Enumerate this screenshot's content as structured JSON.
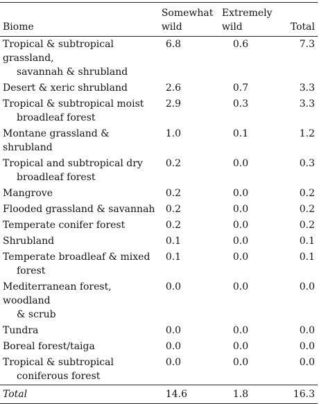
{
  "header": {
    "biome": "Biome",
    "somewhat_wild": "Somewhat wild",
    "somewhat_wild_l1": "Somewhat",
    "somewhat_wild_l2": "wild",
    "extremely_wild": "Extremely wild",
    "extremely_wild_l1": "Extremely",
    "extremely_wild_l2": "wild",
    "total": "Total"
  },
  "rows": [
    {
      "biome_l1": "Tropical & subtropical grassland,",
      "biome_l2": "savannah & shrubland",
      "somewhat": "6.8",
      "extremely": "0.6",
      "total": "7.3"
    },
    {
      "biome_l1": "Desert & xeric shrubland",
      "biome_l2": "",
      "somewhat": "2.6",
      "extremely": "0.7",
      "total": "3.3"
    },
    {
      "biome_l1": "Tropical & subtropical moist",
      "biome_l2": "broadleaf forest",
      "somewhat": "2.9",
      "extremely": "0.3",
      "total": "3.3"
    },
    {
      "biome_l1": "Montane grassland & shrubland",
      "biome_l2": "",
      "somewhat": "1.0",
      "extremely": "0.1",
      "total": "1.2"
    },
    {
      "biome_l1": "Tropical and subtropical dry",
      "biome_l2": "broadleaf forest",
      "somewhat": "0.2",
      "extremely": "0.0",
      "total": "0.3"
    },
    {
      "biome_l1": "Mangrove",
      "biome_l2": "",
      "somewhat": "0.2",
      "extremely": "0.0",
      "total": "0.2"
    },
    {
      "biome_l1": "Flooded grassland & savannah",
      "biome_l2": "",
      "somewhat": "0.2",
      "extremely": "0.0",
      "total": "0.2"
    },
    {
      "biome_l1": "Temperate conifer forest",
      "biome_l2": "",
      "somewhat": "0.2",
      "extremely": "0.0",
      "total": "0.2"
    },
    {
      "biome_l1": "Shrubland",
      "biome_l2": "",
      "somewhat": "0.1",
      "extremely": "0.0",
      "total": "0.1"
    },
    {
      "biome_l1": "Temperate broadleaf & mixed",
      "biome_l2": "forest",
      "somewhat": "0.1",
      "extremely": "0.0",
      "total": "0.1"
    },
    {
      "biome_l1": "Mediterranean forest, woodland",
      "biome_l2": "& scrub",
      "somewhat": "0.0",
      "extremely": "0.0",
      "total": "0.0"
    },
    {
      "biome_l1": "Tundra",
      "biome_l2": "",
      "somewhat": "0.0",
      "extremely": "0.0",
      "total": "0.0"
    },
    {
      "biome_l1": "Boreal forest/taiga",
      "biome_l2": "",
      "somewhat": "0.0",
      "extremely": "0.0",
      "total": "0.0"
    },
    {
      "biome_l1": "Tropical & subtropical",
      "biome_l2": "coniferous forest",
      "somewhat": "0.0",
      "extremely": "0.0",
      "total": "0.0"
    }
  ],
  "total_row": {
    "label": "Total",
    "somewhat": "14.6",
    "extremely": "1.8",
    "total": "16.3"
  }
}
